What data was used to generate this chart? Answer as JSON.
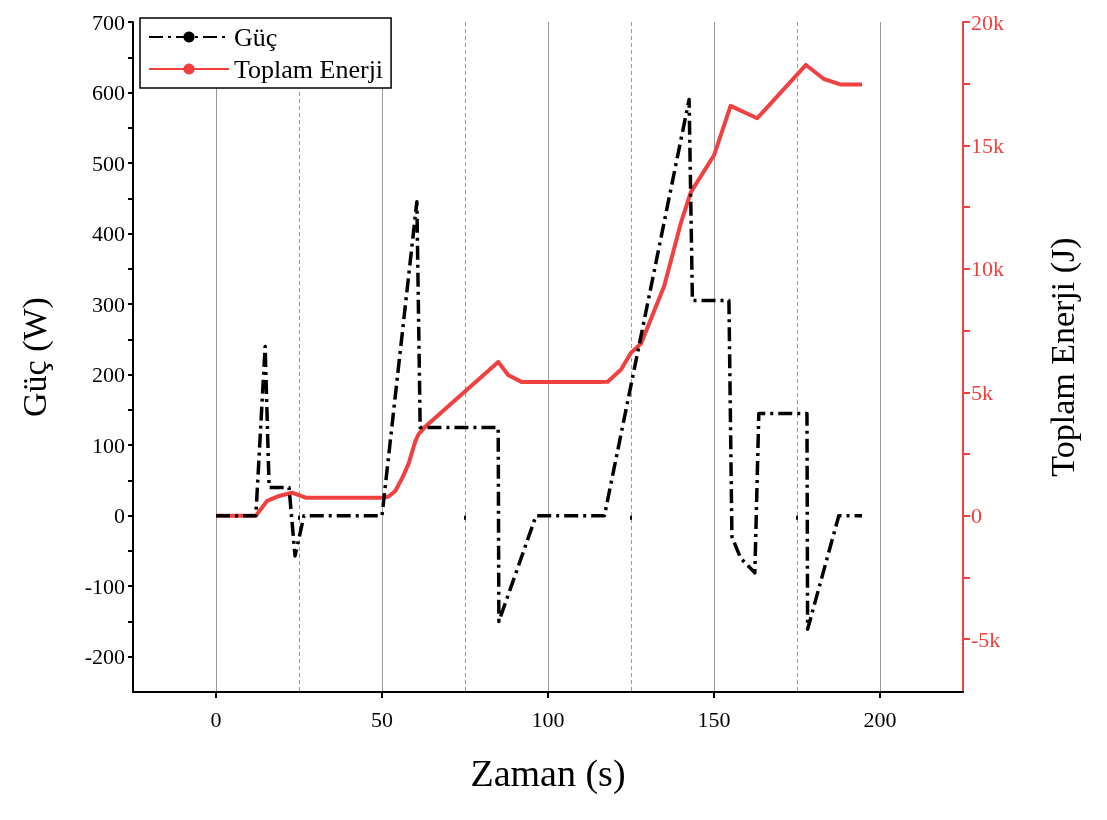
{
  "chart_data": {
    "type": "line",
    "xlabel": "Zaman (s)",
    "ylabel": "Güç (W)",
    "y2label": "Toplam Enerji (J)",
    "xlim": [
      -25,
      225
    ],
    "xticks": [
      0,
      {
        "value": 25,
        "label": null
      },
      50,
      {
        "value": 75,
        "label": null
      },
      100,
      {
        "value": 125,
        "label": null
      },
      150,
      {
        "value": 175,
        "label": null
      },
      200
    ],
    "ylim": [
      -250,
      700
    ],
    "yticks": [
      -200,
      {
        "value": -150,
        "label": null
      },
      -100,
      {
        "value": -50,
        "label": null
      },
      0,
      {
        "value": 50,
        "label": null
      },
      100,
      {
        "value": 150,
        "label": null
      },
      200,
      {
        "value": 250,
        "label": null
      },
      300,
      {
        "value": 350,
        "label": null
      },
      400,
      {
        "value": 450,
        "label": null
      },
      500,
      {
        "value": 550,
        "label": null
      },
      600,
      {
        "value": 650,
        "label": null
      },
      700
    ],
    "y2lim": [
      -7143,
      20000
    ],
    "y2ticks": [
      {
        "value": -5000,
        "label": "-5k"
      },
      {
        "value": -2500,
        "label": null
      },
      0,
      {
        "value": 2500,
        "label": null
      },
      {
        "value": 5000,
        "label": "5k"
      },
      {
        "value": 7500,
        "label": null
      },
      {
        "value": 10000,
        "label": "10k"
      },
      {
        "value": 12500,
        "label": null
      },
      {
        "value": 15000,
        "label": "15k"
      },
      {
        "value": 17500,
        "label": null
      },
      {
        "value": 20000,
        "label": "20k"
      }
    ],
    "grid": "x",
    "legend": "top left",
    "marker": "none",
    "series": [
      {
        "name": "Güç",
        "color": "#000000",
        "line_style": "dashed",
        "x": [
          0,
          12,
          14.8,
          16,
          22,
          23.8,
          26.5,
          50,
          60.5,
          61.5,
          85,
          85.2,
          96.4,
          117,
          142.5,
          143.5,
          154.5,
          155.4,
          158,
          162.3,
          163.5,
          178,
          178.2,
          187.6,
          194.6
        ],
        "values": [
          0,
          0,
          240,
          40,
          40,
          -57,
          0,
          0,
          445,
          125,
          125,
          -150,
          0,
          0,
          590,
          305,
          305,
          -30,
          -60,
          -81,
          145,
          145,
          -161,
          0,
          0
        ]
      },
      {
        "name": "Toplam Enerji",
        "color": "#f04040",
        "line_style": "solid",
        "axis": "y2",
        "x": [
          0,
          12,
          15.4,
          19,
          22.9,
          27,
          50,
          52,
          54,
          56,
          58,
          60,
          61,
          63,
          85,
          88,
          92,
          115,
          118,
          122,
          125,
          128,
          135,
          140,
          143,
          150,
          155,
          163,
          177.7,
          183,
          188,
          194.6
        ],
        "values": [
          0,
          0,
          600,
          800,
          930,
          730,
          730,
          780,
          1000,
          1500,
          2100,
          3000,
          3300,
          3600,
          6230,
          5700,
          5420,
          5420,
          5430,
          5920,
          6600,
          6970,
          9300,
          11850,
          13100,
          14600,
          16600,
          16100,
          18260,
          17700,
          17470,
          17470
        ]
      }
    ]
  }
}
